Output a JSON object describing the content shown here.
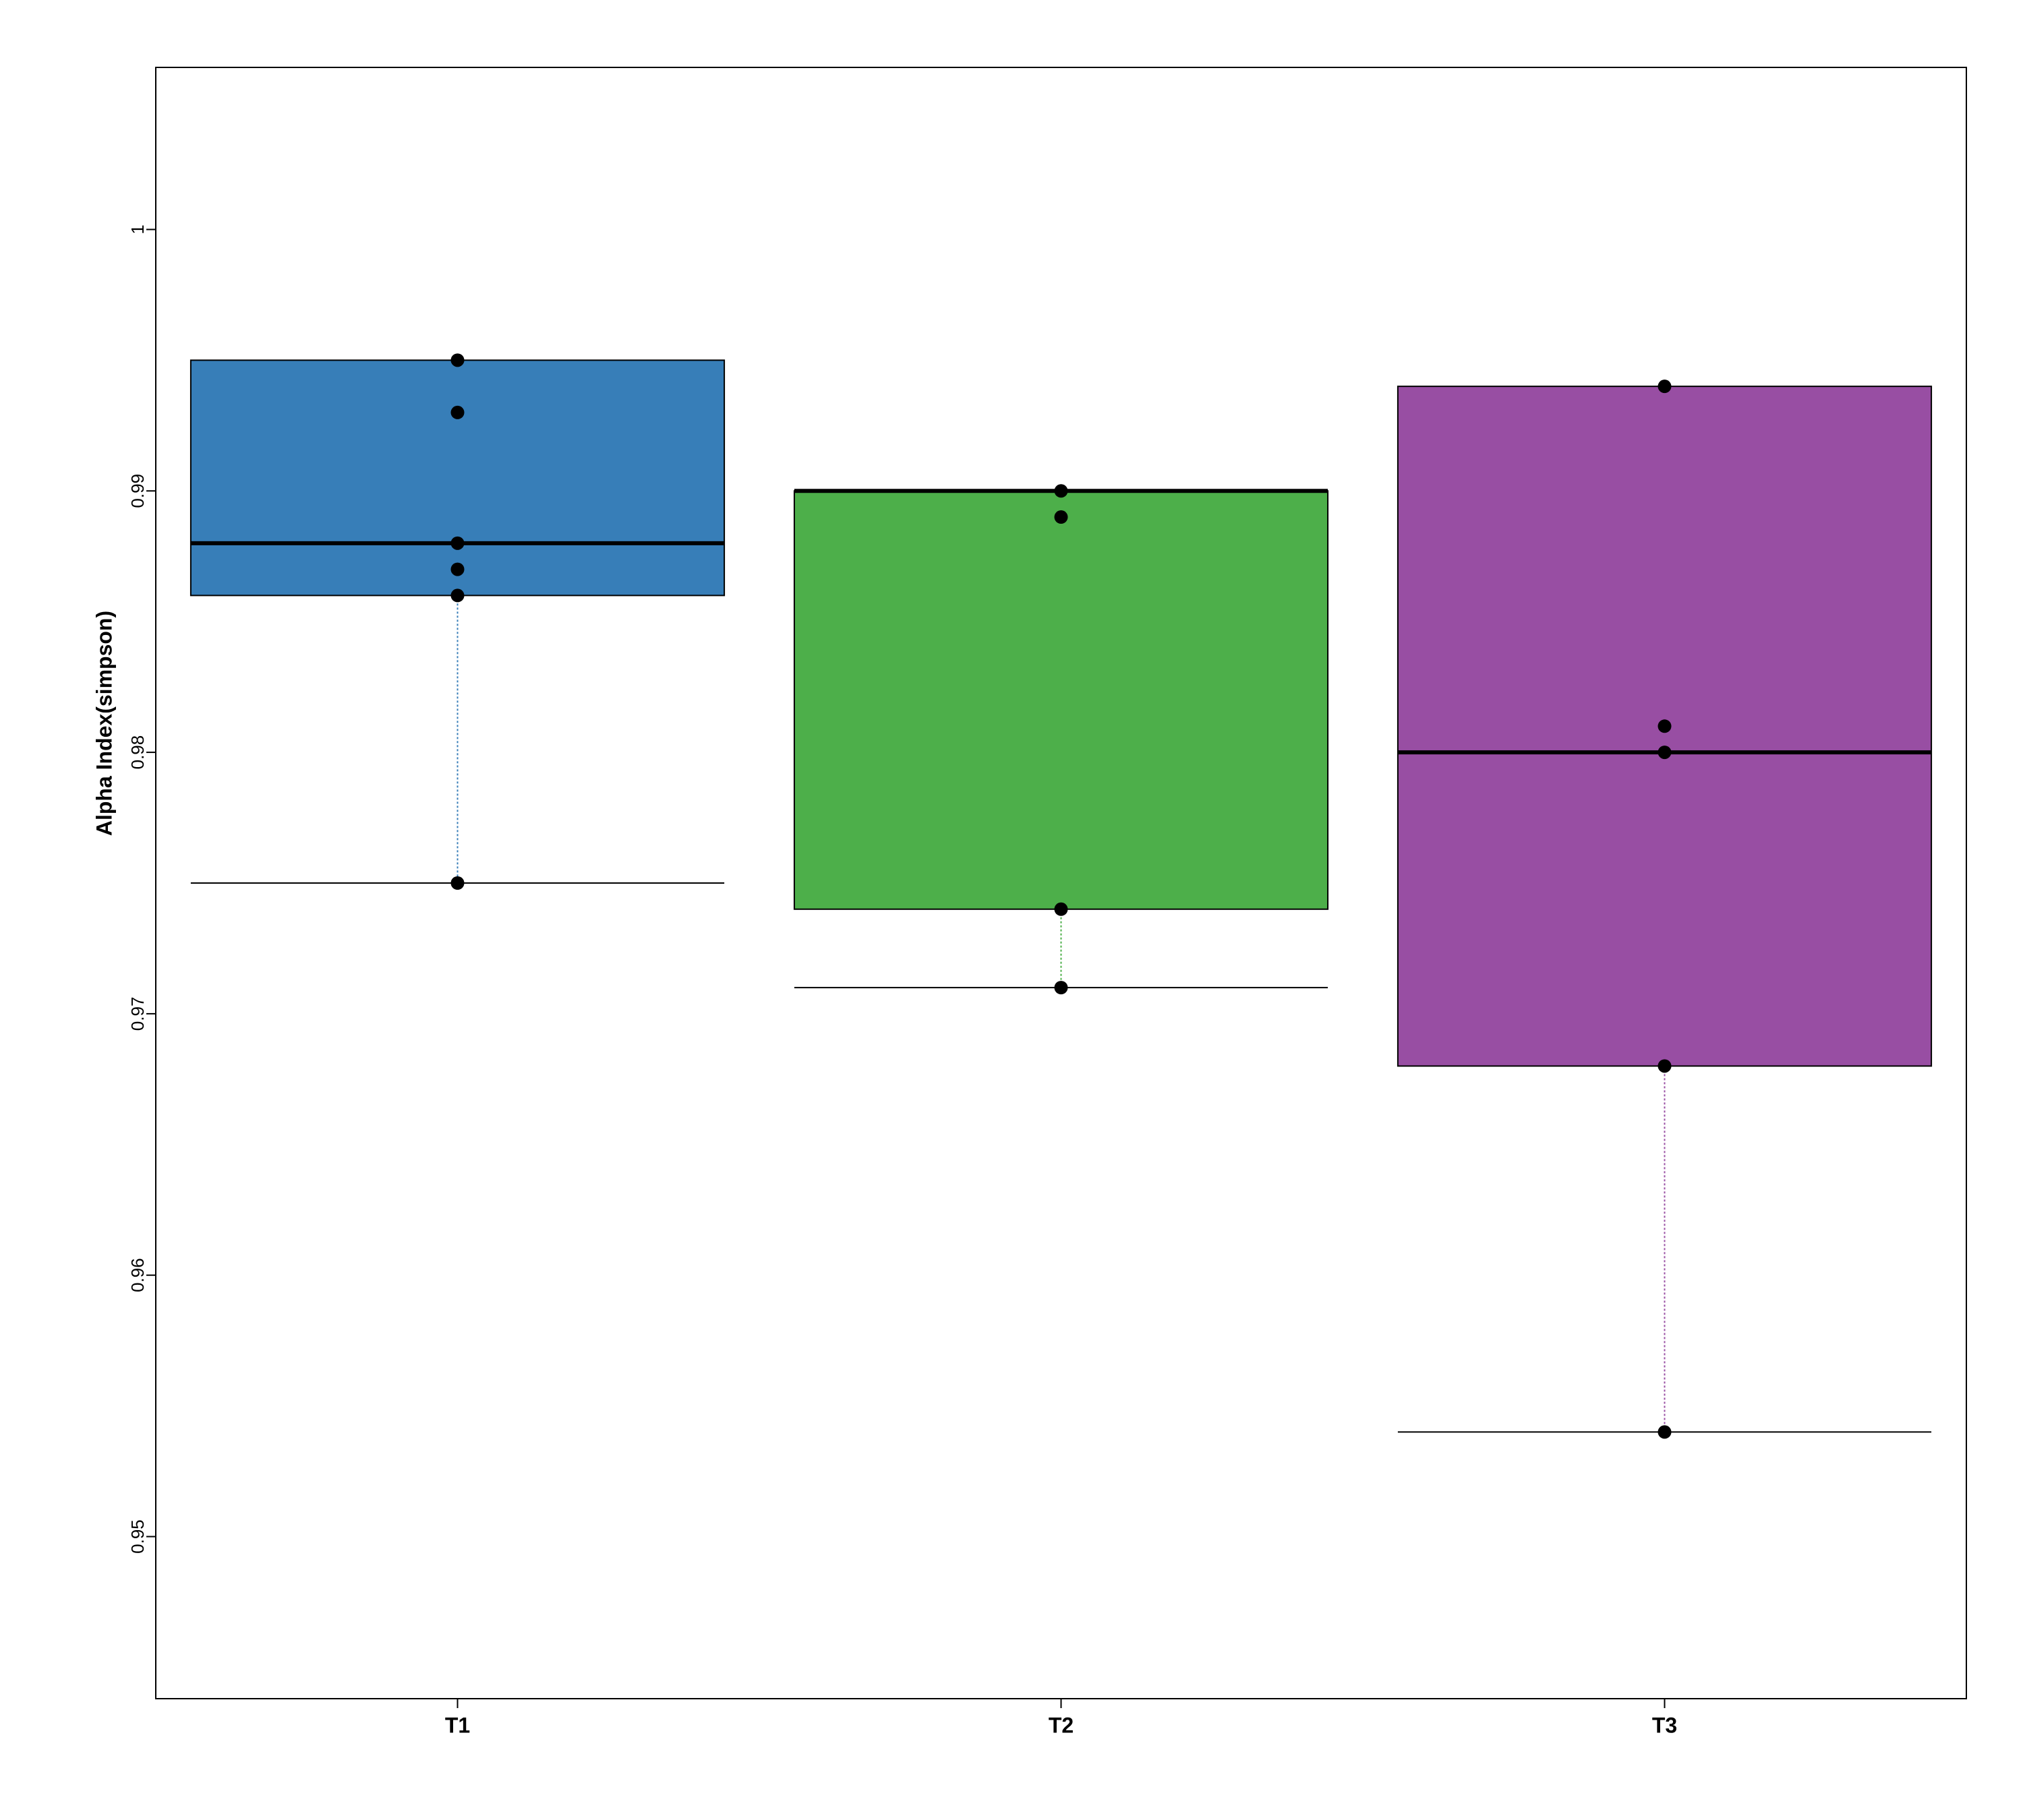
{
  "chart_data": {
    "type": "box",
    "title": "",
    "xlabel": "",
    "ylabel": "Alpha Index(simpson)",
    "ylim": [
      0.9438,
      1.0062
    ],
    "yticks": [
      0.95,
      0.96,
      0.97,
      0.98,
      0.99,
      1
    ],
    "ytick_labels": [
      "0.95",
      "0.96",
      "0.97",
      "0.98",
      "0.99",
      "1"
    ],
    "grid": false,
    "legend": "none",
    "categories": [
      "T1",
      "T2",
      "T3"
    ],
    "boxes": [
      {
        "name": "T1",
        "color": "#377eb8",
        "whisker_low": 0.975,
        "q1": 0.986,
        "median": 0.988,
        "q3": 0.995,
        "whisker_high": 0.995,
        "points": [
          0.995,
          0.993,
          0.988,
          0.987,
          0.986,
          0.975
        ]
      },
      {
        "name": "T2",
        "color": "#4daf4a",
        "whisker_low": 0.971,
        "q1": 0.974,
        "median": 0.99,
        "q3": 0.99,
        "whisker_high": 0.99,
        "points": [
          0.99,
          0.989,
          0.974,
          0.971
        ]
      },
      {
        "name": "T3",
        "color": "#984ea3",
        "whisker_low": 0.954,
        "q1": 0.968,
        "median": 0.98,
        "q3": 0.994,
        "whisker_high": 0.994,
        "points": [
          0.994,
          0.981,
          0.98,
          0.968,
          0.954
        ]
      }
    ]
  }
}
